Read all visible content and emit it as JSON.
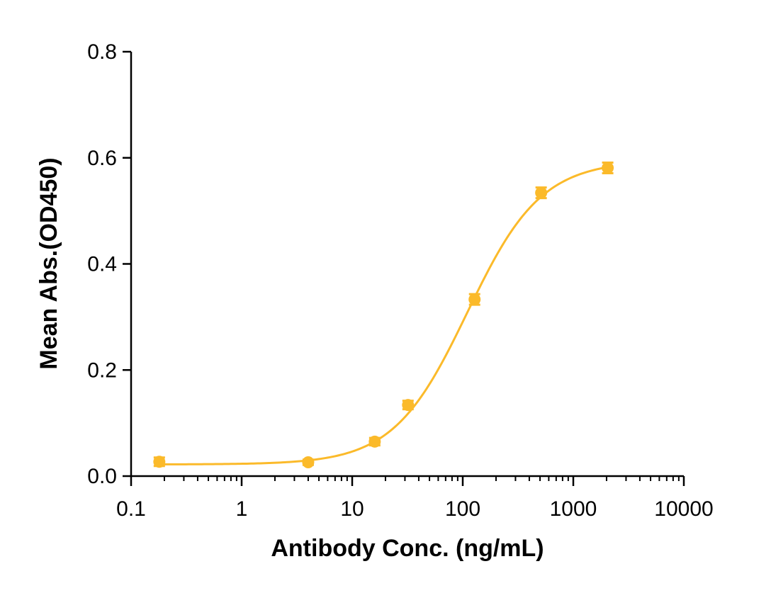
{
  "chart_data": {
    "type": "scatter",
    "title": "",
    "xlabel": "Antibody Conc. (ng/mL)",
    "ylabel": "Mean Abs.(OD450)",
    "x_scale": "log",
    "xlim": [
      0.1,
      10000
    ],
    "ylim": [
      0,
      0.8
    ],
    "x_ticks": [
      0.1,
      1,
      10,
      100,
      1000,
      10000
    ],
    "x_tick_labels": [
      "0.1",
      "1",
      "10",
      "100",
      "1000",
      "10000"
    ],
    "y_ticks": [
      0,
      0.2,
      0.4,
      0.6,
      0.8
    ],
    "y_tick_labels": [
      "0.0",
      "0.2",
      "0.4",
      "0.6",
      "0.8"
    ],
    "grid": false,
    "color": "#FBBA2A",
    "series": [
      {
        "x": [
          0.18,
          4,
          16,
          32,
          128,
          512,
          2048
        ],
        "y": [
          0.027,
          0.026,
          0.065,
          0.134,
          0.333,
          0.534,
          0.581
        ],
        "error": [
          0.008,
          0.005,
          0.007,
          0.008,
          0.01,
          0.01,
          0.01
        ]
      }
    ],
    "fit_curve": {
      "model": "4PL",
      "bottom": 0.022,
      "top": 0.595,
      "ec50": 110,
      "hill": 1.3
    }
  }
}
